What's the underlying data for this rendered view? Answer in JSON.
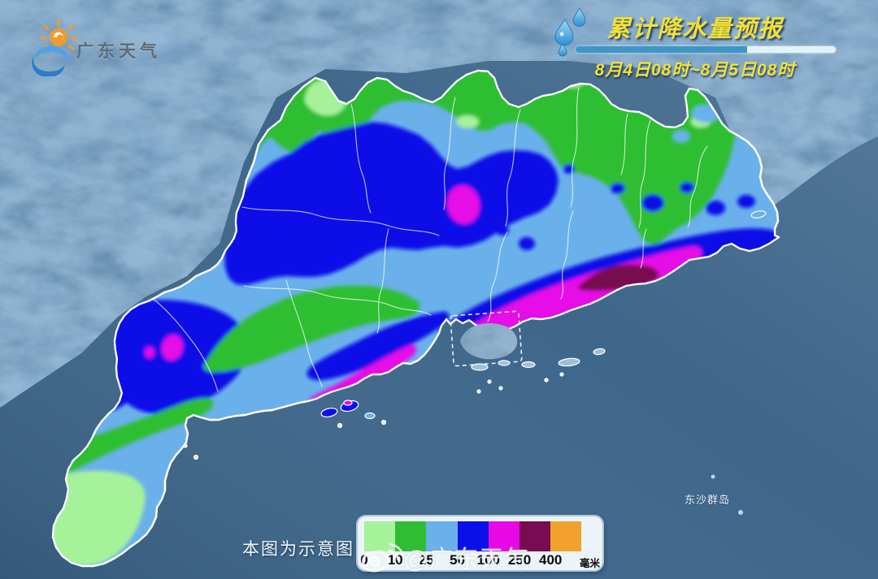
{
  "app": {
    "brand": "广东天气"
  },
  "header": {
    "title": "累计降水量预报",
    "period": "8月4日08时~8月5日08时"
  },
  "map": {
    "note": "本图为示意图",
    "island_label": "东沙群岛",
    "watermark": "@广东天气"
  },
  "legend": {
    "thresholds": [
      "0",
      "10",
      "25",
      "50",
      "100",
      "250",
      "400"
    ],
    "colors": [
      "#a6f29b",
      "#2fbe33",
      "#6ab1ec",
      "#0a10e8",
      "#e609e6",
      "#770c50",
      "#f2a12c"
    ],
    "unit": "毫米"
  },
  "palette": {
    "light_green": "#a6f29b",
    "green": "#2fbe33",
    "light_blue": "#6ab1ec",
    "blue": "#0a10e8",
    "magenta": "#e609e6",
    "dark_red": "#770c50",
    "orange": "#f2a12c",
    "sea": "#3d668a",
    "terrain": "#7aa3c8",
    "hk_terrain": "#7e9dba",
    "island_bare": "#9fbfd8",
    "island_light": "#d6eaf6",
    "boundary": "#ffffff",
    "accent_yellow": "#f2e135"
  }
}
